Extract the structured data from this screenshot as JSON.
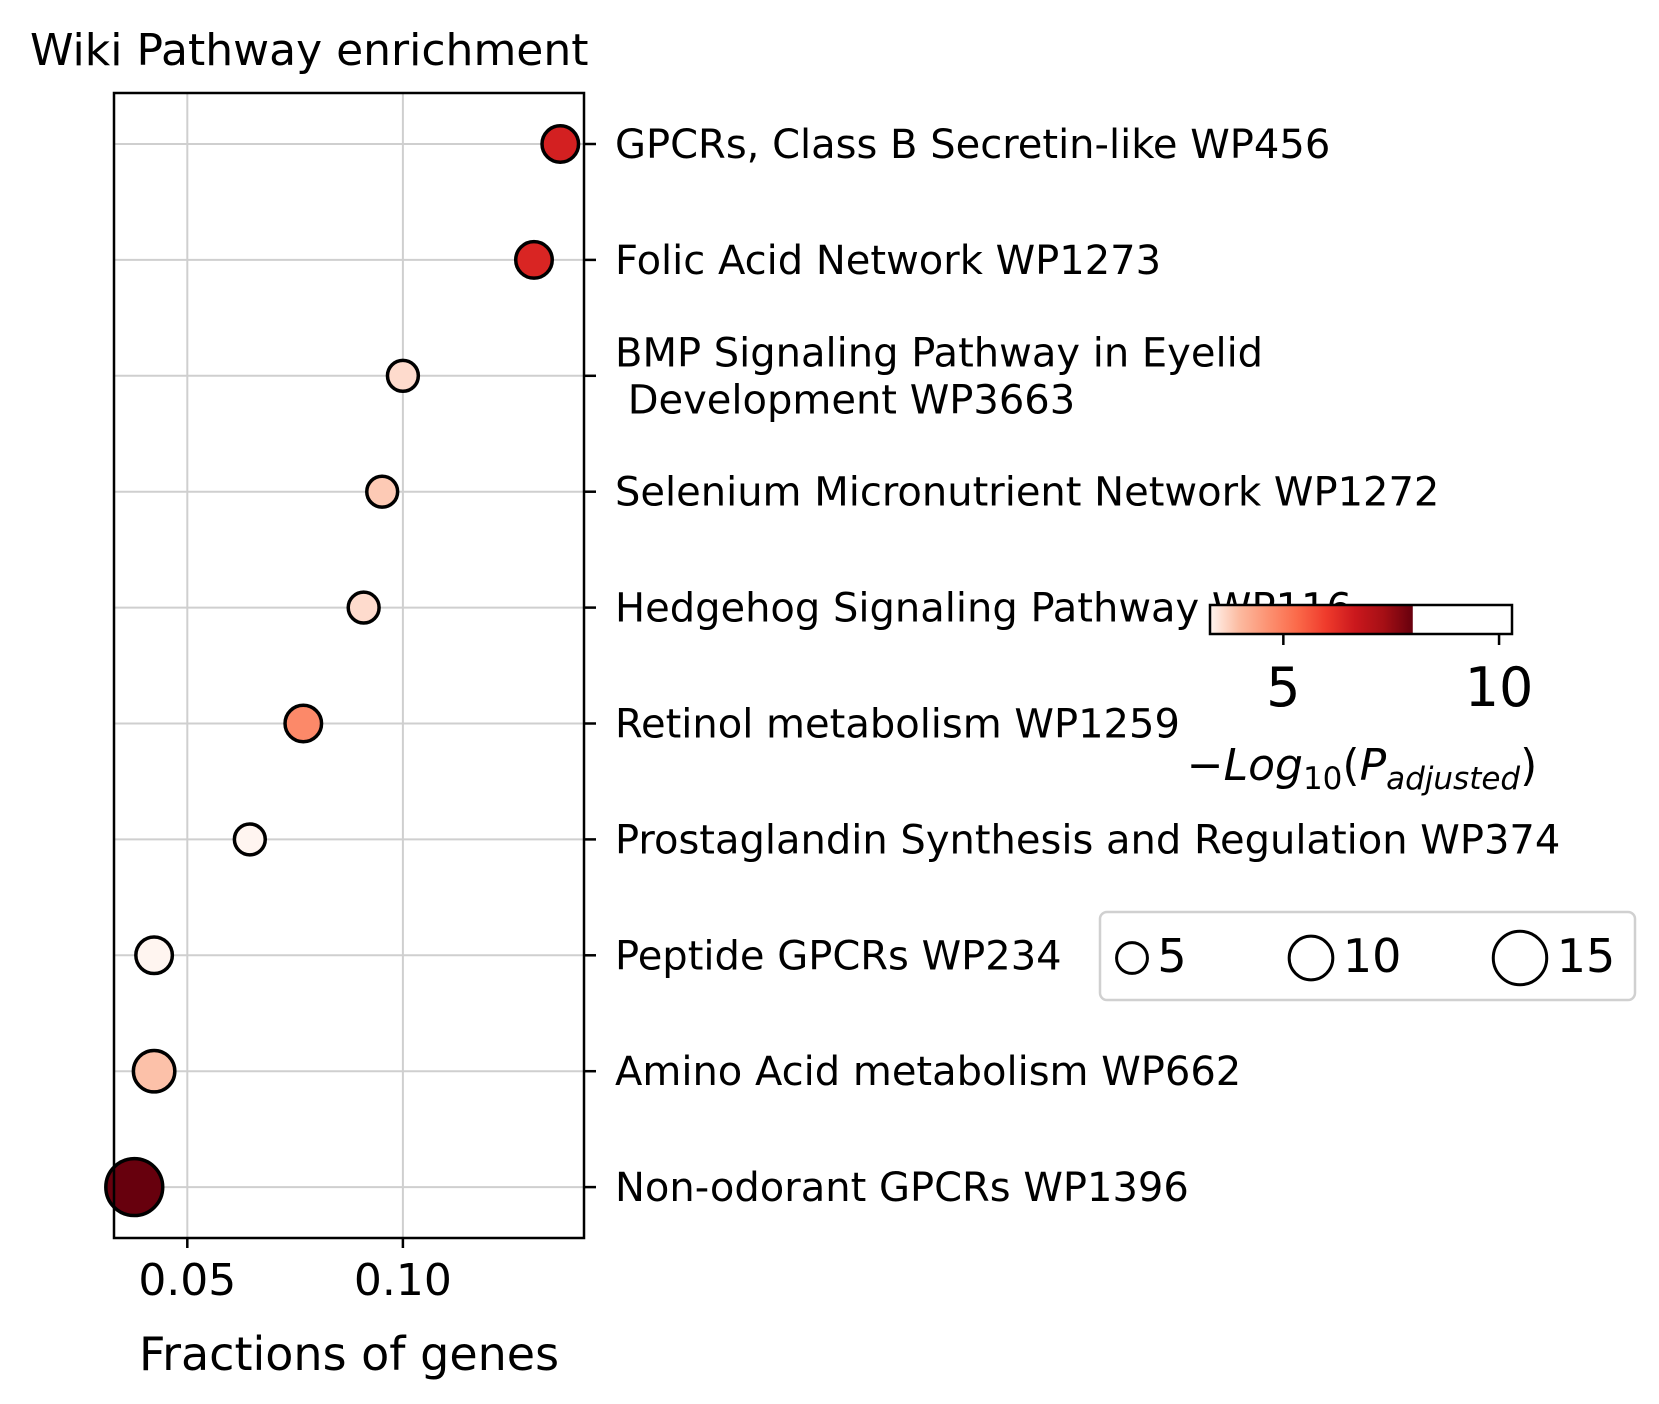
{
  "chart_data": {
    "type": "scatter",
    "title": "Wiki Pathway enrichment",
    "xlabel": "Fractions of genes",
    "ylabel": "",
    "xlim": [
      0.033,
      0.142
    ],
    "xticks": [
      0.05,
      0.1
    ],
    "xtick_labels": [
      "0.05",
      "0.10"
    ],
    "grid": true,
    "categories": [
      "GPCRs, Class B Secretin-like WP456",
      "Folic Acid Network WP1273",
      "BMP Signaling Pathway in Eyelid\n Development WP3663",
      "Selenium Micronutrient Network WP1272",
      "Hedgehog Signaling Pathway WP116",
      "Retinol metabolism WP1259",
      "Prostaglandin Synthesis and Regulation WP374",
      "Peptide GPCRs WP234",
      "Amino Acid metabolism WP662",
      "Non-odorant GPCRs WP1396"
    ],
    "points": [
      {
        "category": "GPCRs, Class B Secretin-like WP456",
        "x": 0.1365,
        "neglog10_padj": 6.5,
        "gene_count": 7
      },
      {
        "category": "Folic Acid Network WP1273",
        "x": 0.1304,
        "neglog10_padj": 6.4,
        "gene_count": 7
      },
      {
        "category": "BMP Signaling Pathway in Eyelid\n Development WP3663",
        "x": 0.1,
        "neglog10_padj": 3.6,
        "gene_count": 5
      },
      {
        "category": "Selenium Micronutrient Network WP1272",
        "x": 0.0952,
        "neglog10_padj": 3.8,
        "gene_count": 5
      },
      {
        "category": "Hedgehog Signaling Pathway WP116",
        "x": 0.0909,
        "neglog10_padj": 3.6,
        "gene_count": 5
      },
      {
        "category": "Retinol metabolism WP1259",
        "x": 0.0769,
        "neglog10_padj": 4.8,
        "gene_count": 7
      },
      {
        "category": "Prostaglandin Synthesis and Regulation WP374",
        "x": 0.0645,
        "neglog10_padj": 3.3,
        "gene_count": 5
      },
      {
        "category": "Peptide GPCRs WP234",
        "x": 0.0423,
        "neglog10_padj": 3.3,
        "gene_count": 7
      },
      {
        "category": "Amino Acid metabolism WP662",
        "x": 0.0423,
        "neglog10_padj": 3.9,
        "gene_count": 9
      },
      {
        "category": "Non-odorant GPCRs WP1396",
        "x": 0.0377,
        "neglog10_padj": 8.0,
        "gene_count": 17
      }
    ],
    "colorbar": {
      "label_main": "−Log",
      "label_sub10": "10",
      "label_paren_open": "(",
      "label_p": "P",
      "label_sub_adj": "adjusted",
      "label_paren_close": ")",
      "range": [
        3.3,
        10.3
      ],
      "filled_max": 8.0,
      "ticks": [
        5,
        10
      ],
      "tick_labels": [
        "5",
        "10"
      ],
      "colormap": [
        "#fff5f0",
        "#fcbba1",
        "#fc9272",
        "#fb6a4a",
        "#ef3b2c",
        "#cb181d",
        "#a50f15",
        "#67000d"
      ],
      "placement": "right, overlapping labels"
    },
    "size_legend": {
      "entries": [
        {
          "value": 5,
          "label": "5"
        },
        {
          "value": 10,
          "label": "10"
        },
        {
          "value": 15,
          "label": "15"
        }
      ],
      "placement": "right"
    }
  }
}
